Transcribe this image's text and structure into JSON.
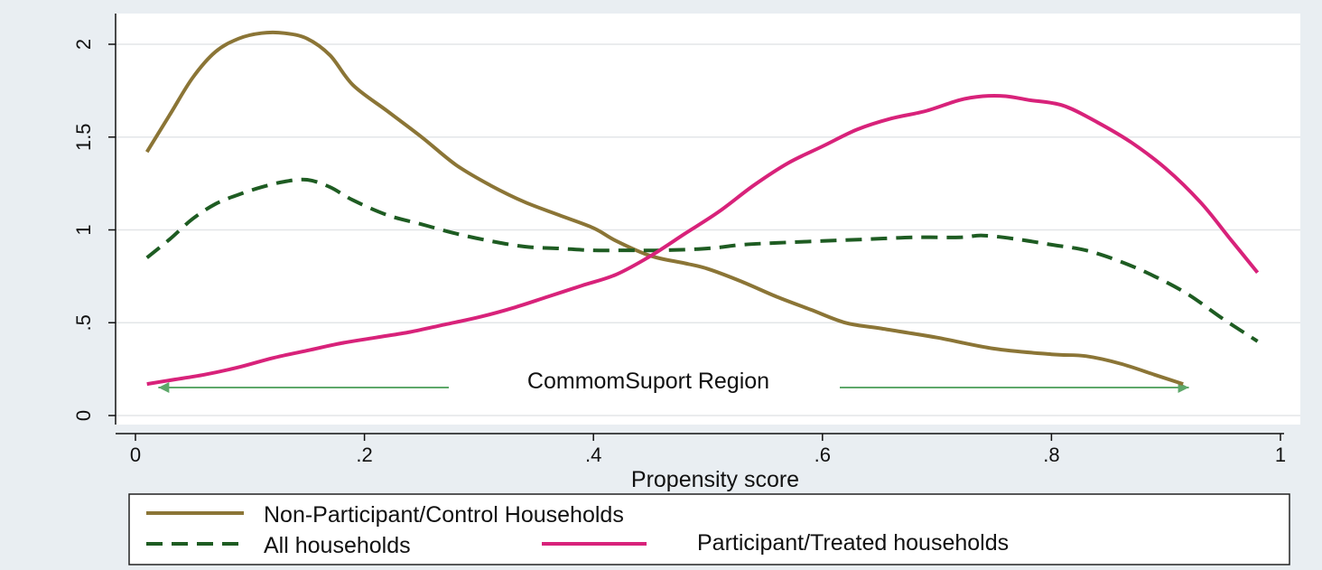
{
  "chart_data": {
    "type": "line",
    "xlabel": "Propensity score",
    "ylabel": "",
    "xlim": [
      0,
      1
    ],
    "ylim": [
      0,
      2.2
    ],
    "x_ticks": [
      {
        "value": 0,
        "label": "0"
      },
      {
        "value": 0.2,
        "label": ".2"
      },
      {
        "value": 0.4,
        "label": ".4"
      },
      {
        "value": 0.6,
        "label": ".6"
      },
      {
        "value": 0.8,
        "label": ".8"
      },
      {
        "value": 1,
        "label": "1"
      }
    ],
    "y_ticks": [
      {
        "value": 0,
        "label": "0"
      },
      {
        "value": 0.5,
        "label": ".5"
      },
      {
        "value": 1,
        "label": "1"
      },
      {
        "value": 1.5,
        "label": "1.5"
      },
      {
        "value": 2,
        "label": "2"
      }
    ],
    "grid": true,
    "legend_position": "bottom",
    "series": [
      {
        "name": "Non-Participant/Control Households",
        "color": "#8b7536",
        "style": "solid",
        "points": [
          [
            0.01,
            1.42
          ],
          [
            0.03,
            1.62
          ],
          [
            0.05,
            1.82
          ],
          [
            0.07,
            1.96
          ],
          [
            0.09,
            2.03
          ],
          [
            0.11,
            2.06
          ],
          [
            0.13,
            2.06
          ],
          [
            0.15,
            2.03
          ],
          [
            0.17,
            1.94
          ],
          [
            0.19,
            1.78
          ],
          [
            0.22,
            1.64
          ],
          [
            0.25,
            1.5
          ],
          [
            0.28,
            1.35
          ],
          [
            0.31,
            1.24
          ],
          [
            0.34,
            1.15
          ],
          [
            0.37,
            1.08
          ],
          [
            0.4,
            1.01
          ],
          [
            0.42,
            0.94
          ],
          [
            0.45,
            0.86
          ],
          [
            0.48,
            0.82
          ],
          [
            0.5,
            0.79
          ],
          [
            0.53,
            0.72
          ],
          [
            0.56,
            0.64
          ],
          [
            0.59,
            0.57
          ],
          [
            0.62,
            0.5
          ],
          [
            0.65,
            0.47
          ],
          [
            0.7,
            0.42
          ],
          [
            0.75,
            0.36
          ],
          [
            0.8,
            0.33
          ],
          [
            0.83,
            0.32
          ],
          [
            0.86,
            0.28
          ],
          [
            0.89,
            0.22
          ],
          [
            0.915,
            0.17
          ]
        ]
      },
      {
        "name": "All households",
        "color": "#1e5c22",
        "style": "dashed",
        "points": [
          [
            0.01,
            0.85
          ],
          [
            0.03,
            0.95
          ],
          [
            0.05,
            1.06
          ],
          [
            0.07,
            1.14
          ],
          [
            0.09,
            1.19
          ],
          [
            0.11,
            1.23
          ],
          [
            0.13,
            1.26
          ],
          [
            0.15,
            1.27
          ],
          [
            0.17,
            1.23
          ],
          [
            0.19,
            1.16
          ],
          [
            0.22,
            1.08
          ],
          [
            0.25,
            1.03
          ],
          [
            0.28,
            0.98
          ],
          [
            0.31,
            0.94
          ],
          [
            0.34,
            0.91
          ],
          [
            0.37,
            0.9
          ],
          [
            0.4,
            0.89
          ],
          [
            0.43,
            0.89
          ],
          [
            0.46,
            0.89
          ],
          [
            0.5,
            0.9
          ],
          [
            0.53,
            0.92
          ],
          [
            0.56,
            0.93
          ],
          [
            0.6,
            0.94
          ],
          [
            0.64,
            0.95
          ],
          [
            0.68,
            0.96
          ],
          [
            0.72,
            0.96
          ],
          [
            0.74,
            0.97
          ],
          [
            0.77,
            0.95
          ],
          [
            0.8,
            0.92
          ],
          [
            0.83,
            0.89
          ],
          [
            0.86,
            0.83
          ],
          [
            0.89,
            0.75
          ],
          [
            0.92,
            0.65
          ],
          [
            0.95,
            0.52
          ],
          [
            0.98,
            0.4
          ]
        ]
      },
      {
        "name": "Participant/Treated households",
        "color": "#d8227a",
        "style": "solid",
        "points": [
          [
            0.01,
            0.17
          ],
          [
            0.03,
            0.19
          ],
          [
            0.06,
            0.22
          ],
          [
            0.09,
            0.26
          ],
          [
            0.12,
            0.31
          ],
          [
            0.15,
            0.35
          ],
          [
            0.18,
            0.39
          ],
          [
            0.21,
            0.42
          ],
          [
            0.24,
            0.45
          ],
          [
            0.27,
            0.49
          ],
          [
            0.3,
            0.53
          ],
          [
            0.33,
            0.58
          ],
          [
            0.36,
            0.64
          ],
          [
            0.39,
            0.7
          ],
          [
            0.42,
            0.76
          ],
          [
            0.45,
            0.86
          ],
          [
            0.48,
            0.98
          ],
          [
            0.51,
            1.1
          ],
          [
            0.54,
            1.24
          ],
          [
            0.57,
            1.36
          ],
          [
            0.6,
            1.45
          ],
          [
            0.63,
            1.54
          ],
          [
            0.66,
            1.6
          ],
          [
            0.69,
            1.64
          ],
          [
            0.72,
            1.7
          ],
          [
            0.74,
            1.72
          ],
          [
            0.76,
            1.72
          ],
          [
            0.78,
            1.7
          ],
          [
            0.81,
            1.67
          ],
          [
            0.84,
            1.58
          ],
          [
            0.87,
            1.47
          ],
          [
            0.9,
            1.33
          ],
          [
            0.93,
            1.15
          ],
          [
            0.955,
            0.96
          ],
          [
            0.98,
            0.77
          ]
        ]
      }
    ],
    "annotation": {
      "text": "CommomSuport Region",
      "x_start": 0.02,
      "x_end": 0.92,
      "y": 0.18,
      "color": "#5ea86a"
    }
  }
}
